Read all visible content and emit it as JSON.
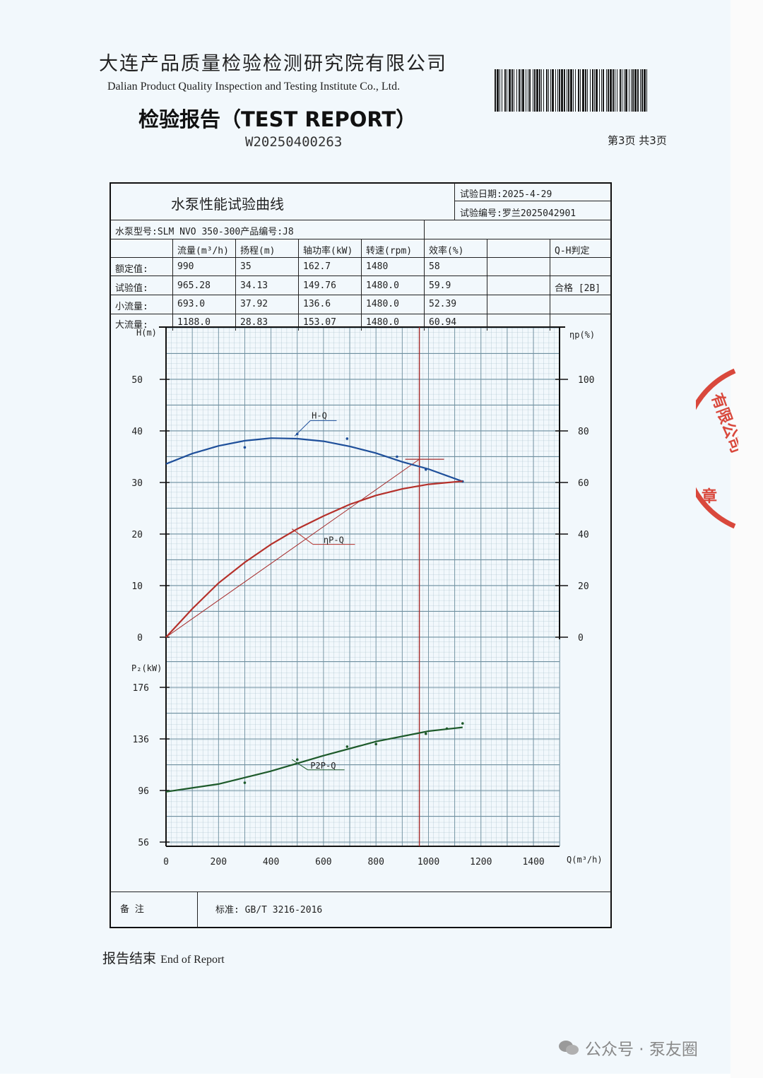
{
  "header": {
    "org_cn": "大连产品质量检验检测研究院有限公司",
    "org_en": "Dalian Product Quality Inspection and Testing Institute Co., Ltd.",
    "title": "检验报告（TEST REPORT）",
    "report_no": "W20250400263",
    "page_info": "第3页 共3页"
  },
  "sheet": {
    "title": "水泵性能试验曲线",
    "test_date": "试验日期:2025-4-29",
    "test_no": "试验编号:罗兰2025042901",
    "model_line": "水泵型号:SLM NVO 350-300产品编号:J8",
    "columns": [
      "流量(m³/h)",
      "扬程(m)",
      "轴功率(kW)",
      "转速(rpm)",
      "效率(%)",
      "Q-H判定"
    ],
    "rows": [
      {
        "label": "额定值:",
        "values": [
          "990",
          "35",
          "162.7",
          "1480",
          "58"
        ]
      },
      {
        "label": "试验值:",
        "values": [
          "965.28",
          "34.13",
          "149.76",
          "1480.0",
          "59.9"
        ]
      },
      {
        "label": "小流量:",
        "values": [
          "693.0",
          "37.92",
          "136.6",
          "1480.0",
          "52.39"
        ]
      },
      {
        "label": "大流量:",
        "values": [
          "1188.0",
          "28.83",
          "153.07",
          "1480.0",
          "60.94"
        ]
      }
    ],
    "judgement": "合格  [2B]",
    "remarks_label": "备    注",
    "standard": "标准:  GB/T 3216-2016"
  },
  "footer": {
    "end_cn": "报告结束",
    "end_en": "End of Report",
    "watermark": "公众号 · 泵友圈"
  },
  "seal_text": "公司有限公司章",
  "chart_data": {
    "type": "line",
    "xlabel": "Q(m³/h)",
    "x_ticks": [
      0,
      200,
      400,
      600,
      800,
      1000,
      1200,
      1400
    ],
    "xlim": [
      0,
      1500
    ],
    "operating_point_q": 965.28,
    "upper_panel": {
      "ylabel_left": "H(m)",
      "ylabel_right": "ηp(%)",
      "left_ticks": [
        0,
        10,
        20,
        30,
        40,
        50
      ],
      "right_ticks": [
        0,
        20,
        40,
        60,
        80,
        100
      ],
      "left_ylim": [
        0,
        60
      ],
      "right_ylim": [
        0,
        120
      ]
    },
    "lower_panel": {
      "ylabel_left": "P₂(kW)",
      "left_ticks": [
        56,
        96,
        136,
        176
      ],
      "left_ylim": [
        56,
        196
      ]
    },
    "series": [
      {
        "name": "H-Q",
        "axis": "H",
        "color": "#1e4f9a",
        "x": [
          0,
          100,
          200,
          300,
          400,
          500,
          600,
          700,
          800,
          900,
          1000,
          1130
        ],
        "y": [
          33.6,
          35.6,
          37.1,
          38.1,
          38.6,
          38.5,
          38.0,
          37.0,
          35.7,
          34.0,
          32.6,
          30.2
        ],
        "points_x": [
          300,
          500,
          690,
          880,
          990,
          1130
        ],
        "points_y": [
          36.8,
          39.4,
          38.5,
          35.0,
          32.5,
          30.2
        ]
      },
      {
        "name": "ηP-Q",
        "axis": "eta",
        "color": "#b5302a",
        "x": [
          0,
          100,
          200,
          300,
          400,
          500,
          600,
          700,
          800,
          900,
          1000,
          1130
        ],
        "y": [
          0,
          11,
          21,
          29,
          36,
          42,
          47,
          51.5,
          55,
          57.5,
          59.3,
          60.5
        ]
      },
      {
        "name": "P2P-Q",
        "axis": "P",
        "color": "#1d5a2a",
        "x": [
          0,
          200,
          400,
          600,
          800,
          1000,
          1130
        ],
        "y": [
          95,
          101,
          111,
          123,
          134,
          142,
          145
        ],
        "points_x": [
          300,
          500,
          690,
          800,
          990,
          1070,
          1130
        ],
        "points_y": [
          102,
          120,
          130,
          132,
          140,
          144,
          148
        ]
      }
    ]
  }
}
